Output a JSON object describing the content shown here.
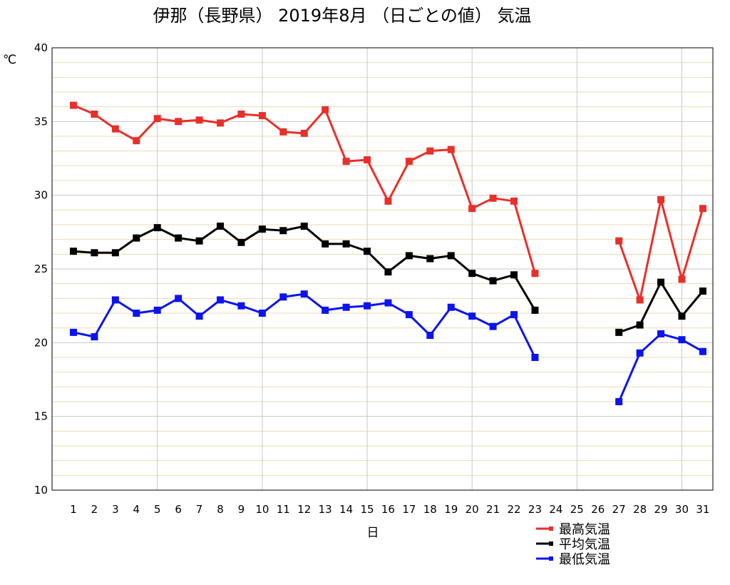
{
  "chart_data": {
    "type": "line",
    "title": "伊那（長野県） 2019年8月 （日ごとの値） 気温",
    "xlabel": "日",
    "ylabel": "℃",
    "ylim": [
      10,
      40
    ],
    "yticks": [
      10,
      15,
      20,
      25,
      30,
      35,
      40
    ],
    "categories": [
      "1",
      "2",
      "3",
      "4",
      "5",
      "6",
      "7",
      "8",
      "9",
      "10",
      "11",
      "12",
      "13",
      "14",
      "15",
      "16",
      "17",
      "18",
      "19",
      "20",
      "21",
      "22",
      "23",
      "24",
      "25",
      "26",
      "27",
      "28",
      "29",
      "30",
      "31"
    ],
    "grid": true,
    "legend_position": "bottom-right",
    "series": [
      {
        "name": "最高気温",
        "color": "#e8302a",
        "values": [
          36.1,
          35.5,
          34.5,
          33.7,
          35.2,
          35.0,
          35.1,
          34.9,
          35.5,
          35.4,
          34.3,
          34.2,
          35.8,
          32.3,
          32.4,
          29.6,
          32.3,
          33.0,
          33.1,
          29.1,
          29.8,
          29.6,
          24.7,
          null,
          null,
          null,
          26.9,
          22.9,
          29.7,
          24.3,
          29.1
        ]
      },
      {
        "name": "平均気温",
        "color": "#000000",
        "values": [
          26.2,
          26.1,
          26.1,
          27.1,
          27.8,
          27.1,
          26.9,
          27.9,
          26.8,
          27.7,
          27.6,
          27.9,
          26.7,
          26.7,
          26.2,
          24.8,
          25.9,
          25.7,
          25.9,
          24.7,
          24.2,
          24.6,
          22.2,
          null,
          null,
          null,
          20.7,
          21.2,
          24.1,
          21.8,
          23.5
        ]
      },
      {
        "name": "最低気温",
        "color": "#0c14f0",
        "values": [
          20.7,
          20.4,
          22.9,
          22.0,
          22.2,
          23.0,
          21.8,
          22.9,
          22.5,
          22.0,
          23.1,
          23.3,
          22.2,
          22.4,
          22.5,
          22.7,
          21.9,
          20.5,
          22.4,
          21.8,
          21.1,
          21.9,
          19.0,
          null,
          null,
          null,
          16.0,
          19.3,
          20.6,
          20.2,
          19.4
        ]
      }
    ]
  }
}
